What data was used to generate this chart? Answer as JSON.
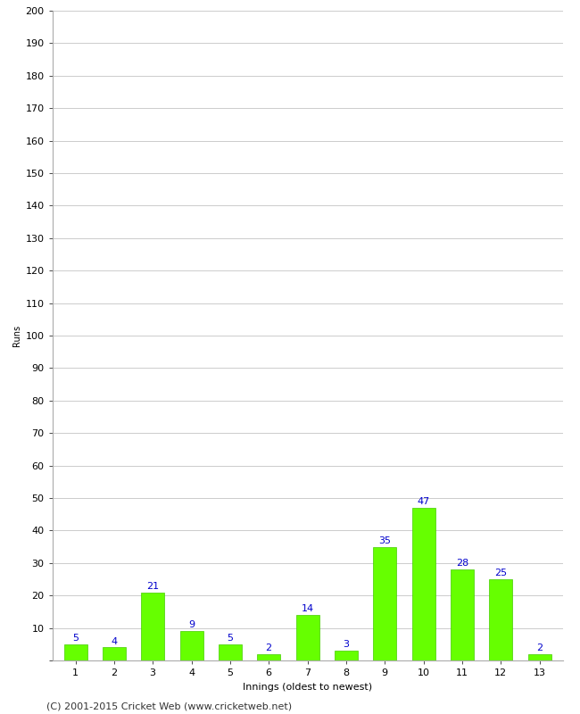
{
  "title": "",
  "xlabel": "Innings (oldest to newest)",
  "ylabel": "Runs",
  "categories": [
    1,
    2,
    3,
    4,
    5,
    6,
    7,
    8,
    9,
    10,
    11,
    12,
    13
  ],
  "values": [
    5,
    4,
    21,
    9,
    5,
    2,
    14,
    3,
    35,
    47,
    28,
    25,
    2
  ],
  "bar_color": "#66ff00",
  "bar_edge_color": "#44cc00",
  "label_color": "#0000cc",
  "ylim": [
    0,
    200
  ],
  "yticks": [
    0,
    10,
    20,
    30,
    40,
    50,
    60,
    70,
    80,
    90,
    100,
    110,
    120,
    130,
    140,
    150,
    160,
    170,
    180,
    190,
    200
  ],
  "grid_color": "#cccccc",
  "background_color": "#ffffff",
  "footer_text": "(C) 2001-2015 Cricket Web (www.cricketweb.net)",
  "axis_label_fontsize": 8,
  "tick_label_fontsize": 8,
  "bar_label_fontsize": 8,
  "footer_fontsize": 8,
  "ylabel_fontsize": 7
}
